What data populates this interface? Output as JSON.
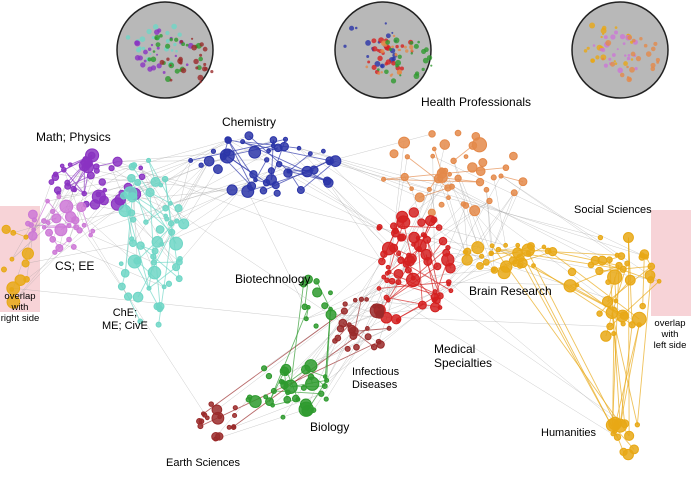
{
  "clusters": [
    {
      "label": "Math; Physics",
      "color": "#8a33c2"
    },
    {
      "label": "Chemistry",
      "color": "#2b35a8"
    },
    {
      "label": "Health Professionals",
      "color": "#e4894a"
    },
    {
      "label": "Social Sciences",
      "color": "#111111"
    },
    {
      "label": "CS; EE",
      "color": "#cc77d6"
    },
    {
      "label": "ChE;\nME; CivE",
      "color": "#6fd6c6"
    },
    {
      "label": "Biotechnology",
      "color": "#2e9a2e"
    },
    {
      "label": "Brain Research",
      "color": "#e8a815"
    },
    {
      "label": "Medical\nSpecialties",
      "color": "#d42020"
    },
    {
      "label": "Infectious\nDiseases",
      "color": "#9a2a2a"
    },
    {
      "label": "Biology",
      "color": "#2e9a2e"
    },
    {
      "label": "Earth Sciences",
      "color": "#111111"
    },
    {
      "label": "Humanities",
      "color": "#111111"
    }
  ],
  "overlap_labels": {
    "left": "overlap\nwith\nright side",
    "right": "overlap\nwith\nleft side"
  },
  "colors": {
    "edge": "#9a9a9a",
    "overlap_band": "#f7d3d7",
    "inset_disc": "#b8b8b8"
  }
}
